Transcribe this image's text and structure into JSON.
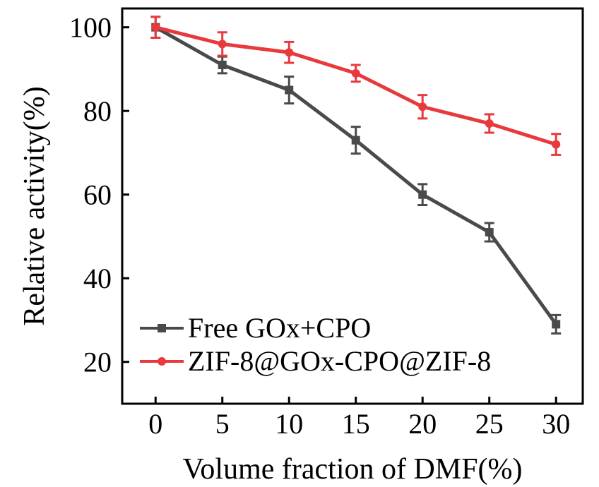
{
  "chart_data": {
    "type": "line",
    "title": "",
    "xlabel": "Volume fraction of DMF(%)",
    "ylabel": "Relative activity(%)",
    "xlim": [
      -2.5,
      32
    ],
    "ylim": [
      10,
      104.5
    ],
    "x_ticks": [
      0,
      5,
      10,
      15,
      20,
      25,
      30
    ],
    "y_ticks": [
      20,
      40,
      60,
      80,
      100
    ],
    "grid": false,
    "legend_position": "bottom-left",
    "x": [
      0,
      5,
      10,
      15,
      20,
      25,
      30
    ],
    "series": [
      {
        "name": "Free GOx+CPO",
        "color": "#4a4a4a",
        "marker": "square",
        "values": [
          100,
          91,
          85,
          73,
          60,
          51,
          29
        ],
        "errors": [
          2.5,
          2,
          3.2,
          3.2,
          2.5,
          2.2,
          2.2
        ]
      },
      {
        "name": "ZIF-8@GOx-CPO@ZIF-8",
        "color": "#e8393c",
        "marker": "circle",
        "values": [
          100,
          96,
          94,
          89,
          81,
          77,
          72
        ],
        "errors": [
          2.5,
          2.8,
          2.5,
          2.0,
          2.8,
          2.2,
          2.5
        ]
      }
    ]
  }
}
